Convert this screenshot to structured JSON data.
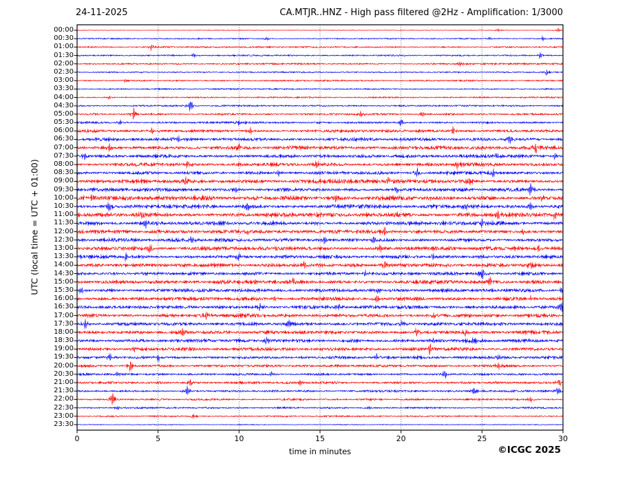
{
  "header": {
    "date": "24-11-2025",
    "title": "CA.MTJR..HNZ - High pass filtered @2Hz - Amplification: 1/3000"
  },
  "footer": {
    "xlabel": "time in minutes",
    "copyright": "©ICGC 2025"
  },
  "colors": {
    "red_trace": "#ff0000",
    "blue_trace": "#0000ff",
    "grid": "#555555",
    "frame": "#000000",
    "background": "#ffffff"
  },
  "chart_data": {
    "type": "line",
    "title": "CA.MTJR..HNZ - High pass filtered @2Hz - Amplification: 1/3000",
    "date": "24-11-2025",
    "xlabel": "time in minutes",
    "ylabel": "UTC (local time = UTC + 01:00)",
    "xlim": [
      0,
      30
    ],
    "x_ticks": [
      0,
      5,
      10,
      15,
      20,
      25,
      30
    ],
    "grid_minutes": [
      5,
      10,
      15,
      20,
      25
    ],
    "grid_on": true,
    "legend": null,
    "rows": [
      {
        "time": "00:00",
        "color": "#ff0000",
        "noise": 0.4,
        "spikes": [
          [
            26,
            1.2
          ],
          [
            29.7,
            1.5
          ]
        ]
      },
      {
        "time": "00:30",
        "color": "#0000ff",
        "noise": 0.8,
        "spikes": [
          [
            11.7,
            1.5
          ],
          [
            25.5,
            1.2
          ],
          [
            28.8,
            1.8
          ]
        ]
      },
      {
        "time": "01:00",
        "color": "#ff0000",
        "noise": 0.9,
        "spikes": [
          [
            4.6,
            2.2
          ]
        ]
      },
      {
        "time": "01:30",
        "color": "#0000ff",
        "noise": 0.9,
        "spikes": [
          [
            7.2,
            1.3
          ],
          [
            28.6,
            1.8
          ]
        ]
      },
      {
        "time": "02:00",
        "color": "#ff0000",
        "noise": 1.0,
        "spikes": [
          [
            23.6,
            1.8
          ]
        ]
      },
      {
        "time": "02:30",
        "color": "#0000ff",
        "noise": 0.8,
        "spikes": [
          [
            29,
            2.2
          ]
        ]
      },
      {
        "time": "03:00",
        "color": "#ff0000",
        "noise": 0.9,
        "spikes": [
          [
            3,
            1.3
          ]
        ]
      },
      {
        "time": "03:30",
        "color": "#0000ff",
        "noise": 0.8,
        "spikes": []
      },
      {
        "time": "04:00",
        "color": "#ff0000",
        "noise": 0.9,
        "spikes": [
          [
            2,
            1.4
          ]
        ]
      },
      {
        "time": "04:30",
        "color": "#0000ff",
        "noise": 1.0,
        "spikes": [
          [
            7,
            4.5
          ]
        ]
      },
      {
        "time": "05:00",
        "color": "#ff0000",
        "noise": 1.2,
        "spikes": [
          [
            3.5,
            4
          ],
          [
            17.5,
            2
          ],
          [
            21.3,
            2.2
          ]
        ]
      },
      {
        "time": "05:30",
        "color": "#0000ff",
        "noise": 1.3,
        "spikes": [
          [
            2.7,
            1.8
          ],
          [
            10,
            1.8
          ],
          [
            20,
            3.2
          ]
        ]
      },
      {
        "time": "06:00",
        "color": "#ff0000",
        "noise": 1.7,
        "spikes": [
          [
            4.6,
            2
          ],
          [
            10.7,
            2.4
          ],
          [
            23.2,
            2.8
          ]
        ]
      },
      {
        "time": "06:30",
        "color": "#0000ff",
        "noise": 1.9,
        "spikes": [
          [
            6.2,
            2.6
          ],
          [
            26.7,
            3.5
          ]
        ]
      },
      {
        "time": "07:00",
        "color": "#ff0000",
        "noise": 2.1,
        "spikes": [
          [
            2,
            2.6
          ],
          [
            10,
            3
          ],
          [
            28.3,
            3.5
          ]
        ]
      },
      {
        "time": "07:30",
        "color": "#0000ff",
        "noise": 1.9,
        "spikes": [
          [
            0.5,
            2.2
          ],
          [
            25.9,
            2.8
          ],
          [
            29.5,
            2.4
          ]
        ]
      },
      {
        "time": "08:00",
        "color": "#ff0000",
        "noise": 2.1,
        "spikes": [
          [
            6.8,
            3.5
          ],
          [
            14.8,
            2.2
          ],
          [
            23.5,
            2.4
          ]
        ]
      },
      {
        "time": "08:30",
        "color": "#0000ff",
        "noise": 1.9,
        "spikes": [
          [
            12.4,
            2.4
          ],
          [
            21,
            3
          ],
          [
            25.7,
            2.6
          ]
        ]
      },
      {
        "time": "09:00",
        "color": "#ff0000",
        "noise": 2.2,
        "spikes": [
          [
            6.7,
            2.6
          ],
          [
            19.2,
            2.2
          ],
          [
            24.2,
            3.2
          ]
        ]
      },
      {
        "time": "09:30",
        "color": "#0000ff",
        "noise": 2.0,
        "spikes": [
          [
            9.8,
            2.2
          ],
          [
            19.7,
            2.4
          ],
          [
            28,
            4
          ]
        ]
      },
      {
        "time": "10:00",
        "color": "#ff0000",
        "noise": 2.6,
        "spikes": [
          [
            1,
            2.8
          ],
          [
            16,
            2.6
          ],
          [
            28.7,
            2.8
          ]
        ]
      },
      {
        "time": "10:30",
        "color": "#0000ff",
        "noise": 2.3,
        "spikes": [
          [
            2,
            2.6
          ],
          [
            10.5,
            3
          ],
          [
            24,
            2.4
          ],
          [
            28,
            3
          ]
        ]
      },
      {
        "time": "11:00",
        "color": "#ff0000",
        "noise": 2.4,
        "spikes": [
          [
            4,
            2.4
          ],
          [
            26,
            3
          ],
          [
            29.5,
            2.8
          ]
        ]
      },
      {
        "time": "11:30",
        "color": "#0000ff",
        "noise": 2.2,
        "spikes": [
          [
            4.2,
            3
          ],
          [
            14.8,
            2.2
          ],
          [
            25,
            2.6
          ]
        ]
      },
      {
        "time": "12:00",
        "color": "#ff0000",
        "noise": 2.1,
        "spikes": [
          [
            10.5,
            2.6
          ],
          [
            19,
            2.4
          ],
          [
            27.5,
            2.2
          ]
        ]
      },
      {
        "time": "12:30",
        "color": "#0000ff",
        "noise": 2.1,
        "spikes": [
          [
            7,
            3
          ],
          [
            15.3,
            2.6
          ],
          [
            18.3,
            3
          ]
        ]
      },
      {
        "time": "13:00",
        "color": "#ff0000",
        "noise": 2.2,
        "spikes": [
          [
            4.5,
            3.4
          ],
          [
            18.7,
            2.6
          ],
          [
            28.5,
            2.4
          ]
        ]
      },
      {
        "time": "13:30",
        "color": "#0000ff",
        "noise": 2.1,
        "spikes": [
          [
            3,
            2.6
          ],
          [
            10,
            2.2
          ],
          [
            22,
            2.6
          ]
        ]
      },
      {
        "time": "14:00",
        "color": "#ff0000",
        "noise": 2.1,
        "spikes": [
          [
            14,
            2.6
          ],
          [
            19,
            3
          ],
          [
            28,
            2.2
          ]
        ]
      },
      {
        "time": "14:30",
        "color": "#0000ff",
        "noise": 1.9,
        "spikes": [
          [
            17.8,
            2.2
          ],
          [
            25,
            4.5
          ]
        ]
      },
      {
        "time": "15:00",
        "color": "#ff0000",
        "noise": 2.1,
        "spikes": [
          [
            11,
            2.2
          ],
          [
            13.3,
            2.4
          ],
          [
            25.5,
            3.4
          ]
        ]
      },
      {
        "time": "15:30",
        "color": "#0000ff",
        "noise": 1.9,
        "spikes": [
          [
            0.3,
            2.8
          ],
          [
            18.5,
            2.2
          ],
          [
            29.9,
            2.6
          ]
        ]
      },
      {
        "time": "16:00",
        "color": "#ff0000",
        "noise": 2.1,
        "spikes": [
          [
            12.2,
            2.4
          ],
          [
            18.5,
            3
          ],
          [
            28,
            2.2
          ]
        ]
      },
      {
        "time": "16:30",
        "color": "#0000ff",
        "noise": 1.9,
        "spikes": [
          [
            11.3,
            3
          ],
          [
            16.2,
            2.6
          ],
          [
            29.9,
            4.5
          ]
        ]
      },
      {
        "time": "17:00",
        "color": "#ff0000",
        "noise": 2.1,
        "spikes": [
          [
            8,
            3.2
          ],
          [
            22,
            2.4
          ]
        ]
      },
      {
        "time": "17:30",
        "color": "#0000ff",
        "noise": 1.9,
        "spikes": [
          [
            0.5,
            3
          ],
          [
            13,
            2.6
          ],
          [
            20,
            2.2
          ]
        ]
      },
      {
        "time": "18:00",
        "color": "#ff0000",
        "noise": 2.1,
        "spikes": [
          [
            6.5,
            3
          ],
          [
            21,
            3.4
          ],
          [
            24,
            2.4
          ]
        ]
      },
      {
        "time": "18:30",
        "color": "#0000ff",
        "noise": 1.9,
        "spikes": [
          [
            11.7,
            3.4
          ],
          [
            22,
            3
          ],
          [
            24.5,
            2.4
          ]
        ]
      },
      {
        "time": "19:00",
        "color": "#ff0000",
        "noise": 1.9,
        "spikes": [
          [
            3.5,
            2.2
          ],
          [
            21.8,
            4
          ]
        ]
      },
      {
        "time": "19:30",
        "color": "#0000ff",
        "noise": 1.7,
        "spikes": [
          [
            2,
            3
          ],
          [
            5,
            2.6
          ],
          [
            18.5,
            2.2
          ],
          [
            26,
            2.2
          ]
        ]
      },
      {
        "time": "20:00",
        "color": "#ff0000",
        "noise": 1.5,
        "spikes": [
          [
            3.3,
            4
          ],
          [
            26,
            2.2
          ]
        ]
      },
      {
        "time": "20:30",
        "color": "#0000ff",
        "noise": 1.4,
        "spikes": [
          [
            2.5,
            2.2
          ],
          [
            12,
            2.2
          ],
          [
            22.7,
            3.5
          ]
        ]
      },
      {
        "time": "21:00",
        "color": "#ff0000",
        "noise": 1.4,
        "spikes": [
          [
            7,
            2.6
          ],
          [
            13.8,
            2.2
          ],
          [
            29.8,
            2.6
          ]
        ]
      },
      {
        "time": "21:30",
        "color": "#0000ff",
        "noise": 1.3,
        "spikes": [
          [
            6.8,
            3
          ],
          [
            24.5,
            2.2
          ],
          [
            29.7,
            3
          ]
        ]
      },
      {
        "time": "22:00",
        "color": "#ff0000",
        "noise": 1.2,
        "spikes": [
          [
            2.2,
            4
          ],
          [
            28,
            2.2
          ]
        ]
      },
      {
        "time": "22:30",
        "color": "#0000ff",
        "noise": 1.1,
        "spikes": [
          [
            2.5,
            1.8
          ],
          [
            18,
            1.4
          ]
        ]
      },
      {
        "time": "23:00",
        "color": "#ff0000",
        "noise": 0.9,
        "spikes": [
          [
            7.2,
            2.6
          ]
        ]
      },
      {
        "time": "23:30",
        "color": "#0000ff",
        "noise": 0.5,
        "spikes": []
      }
    ]
  }
}
